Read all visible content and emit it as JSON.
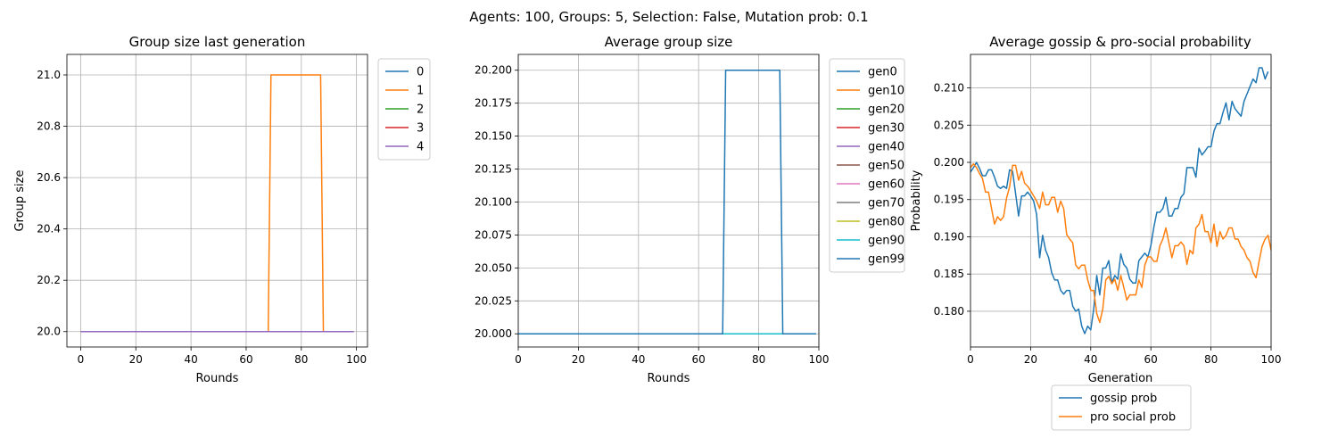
{
  "suptitle": "Agents: 100, Groups: 5, Selection: False, Mutation prob: 0.1",
  "chart_data": [
    {
      "type": "line",
      "title": "Group size last generation",
      "xlabel": "Rounds",
      "ylabel": "Group size",
      "xlim": [
        -5,
        104
      ],
      "ylim": [
        19.94,
        21.08
      ],
      "xticks": [
        0,
        20,
        40,
        60,
        80,
        100
      ],
      "xtick_labels": [
        "0",
        "20",
        "40",
        "60",
        "80",
        "100"
      ],
      "yticks": [
        20.0,
        20.2,
        20.4,
        20.6,
        20.8,
        21.0
      ],
      "ytick_labels": [
        "20.0",
        "20.2",
        "20.4",
        "20.6",
        "20.8",
        "21.0"
      ],
      "grid": true,
      "legend_position": "outside-top-right",
      "series": [
        {
          "name": "0",
          "color": "#1f77b4",
          "points": [
            [
              0,
              20.0
            ],
            [
              99,
              20.0
            ]
          ]
        },
        {
          "name": "1",
          "color": "#ff7f0e",
          "points": [
            [
              0,
              20.0
            ],
            [
              68,
              20.0
            ],
            [
              69,
              21.0
            ],
            [
              87,
              21.0
            ],
            [
              88,
              20.0
            ],
            [
              99,
              20.0
            ]
          ]
        },
        {
          "name": "2",
          "color": "#2ca02c",
          "points": [
            [
              0,
              20.0
            ],
            [
              99,
              20.0
            ]
          ]
        },
        {
          "name": "3",
          "color": "#d62728",
          "points": [
            [
              0,
              20.0
            ],
            [
              99,
              20.0
            ]
          ]
        },
        {
          "name": "4",
          "color": "#9467bd",
          "points": [
            [
              0,
              20.0
            ],
            [
              99,
              20.0
            ]
          ]
        }
      ]
    },
    {
      "type": "line",
      "title": "Average group size",
      "xlabel": "Rounds",
      "ylabel": "",
      "xlim": [
        0,
        100
      ],
      "ylim": [
        19.99,
        20.212
      ],
      "xticks": [
        0,
        20,
        40,
        60,
        80,
        100
      ],
      "xtick_labels": [
        "0",
        "20",
        "40",
        "60",
        "80",
        "100"
      ],
      "yticks": [
        20.0,
        20.025,
        20.05,
        20.075,
        20.1,
        20.125,
        20.15,
        20.175,
        20.2
      ],
      "ytick_labels": [
        "20.000",
        "20.025",
        "20.050",
        "20.075",
        "20.100",
        "20.125",
        "20.150",
        "20.175",
        "20.200"
      ],
      "grid": true,
      "legend_position": "outside-top-right",
      "series": [
        {
          "name": "gen0",
          "color": "#1f77b4",
          "points": [
            [
              0,
              20.0
            ],
            [
              99,
              20.0
            ]
          ]
        },
        {
          "name": "gen10",
          "color": "#ff7f0e",
          "points": [
            [
              0,
              20.0
            ],
            [
              99,
              20.0
            ]
          ]
        },
        {
          "name": "gen20",
          "color": "#2ca02c",
          "points": [
            [
              0,
              20.0
            ],
            [
              99,
              20.0
            ]
          ]
        },
        {
          "name": "gen30",
          "color": "#d62728",
          "points": [
            [
              0,
              20.0
            ],
            [
              99,
              20.0
            ]
          ]
        },
        {
          "name": "gen40",
          "color": "#9467bd",
          "points": [
            [
              0,
              20.0
            ],
            [
              99,
              20.0
            ]
          ]
        },
        {
          "name": "gen50",
          "color": "#8c564b",
          "points": [
            [
              0,
              20.0
            ],
            [
              99,
              20.0
            ]
          ]
        },
        {
          "name": "gen60",
          "color": "#e377c2",
          "points": [
            [
              0,
              20.0
            ],
            [
              99,
              20.0
            ]
          ]
        },
        {
          "name": "gen70",
          "color": "#7f7f7f",
          "points": [
            [
              0,
              20.0
            ],
            [
              99,
              20.0
            ]
          ]
        },
        {
          "name": "gen80",
          "color": "#bcbd22",
          "points": [
            [
              0,
              20.0
            ],
            [
              99,
              20.0
            ]
          ]
        },
        {
          "name": "gen90",
          "color": "#17becf",
          "points": [
            [
              0,
              20.0
            ],
            [
              99,
              20.0
            ]
          ]
        },
        {
          "name": "gen99",
          "color": "#1f77b4",
          "points": [
            [
              0,
              20.0
            ],
            [
              68,
              20.0
            ],
            [
              69,
              20.2
            ],
            [
              87,
              20.2
            ],
            [
              88,
              20.0
            ],
            [
              99,
              20.0
            ]
          ]
        }
      ]
    },
    {
      "type": "line",
      "title": "Average gossip & pro-social probability",
      "xlabel": "Generation",
      "ylabel": "Probability",
      "xlim": [
        0,
        100
      ],
      "ylim": [
        0.1752,
        0.2145
      ],
      "xticks": [
        0,
        20,
        40,
        60,
        80,
        100
      ],
      "xtick_labels": [
        "0",
        "20",
        "40",
        "60",
        "80",
        "100"
      ],
      "yticks": [
        0.18,
        0.185,
        0.19,
        0.195,
        0.2,
        0.205,
        0.21
      ],
      "ytick_labels": [
        "0.180",
        "0.185",
        "0.190",
        "0.195",
        "0.200",
        "0.205",
        "0.210"
      ],
      "grid": true,
      "legend_position": "below",
      "series": [
        {
          "name": "gossip prob",
          "color": "#1f77b4",
          "y": [
            0.1987,
            0.1993,
            0.2,
            0.1992,
            0.1982,
            0.1982,
            0.199,
            0.199,
            0.198,
            0.1968,
            0.1965,
            0.1968,
            0.1965,
            0.199,
            0.1988,
            0.1958,
            0.1928,
            0.1955,
            0.1955,
            0.196,
            0.1955,
            0.1948,
            0.193,
            0.1872,
            0.1902,
            0.1882,
            0.1872,
            0.1852,
            0.1842,
            0.1842,
            0.1828,
            0.1823,
            0.1828,
            0.1828,
            0.1807,
            0.18,
            0.1803,
            0.178,
            0.177,
            0.178,
            0.1775,
            0.1803,
            0.1848,
            0.1822,
            0.1858,
            0.1858,
            0.1868,
            0.1838,
            0.1848,
            0.1843,
            0.1877,
            0.1863,
            0.1858,
            0.1843,
            0.1838,
            0.1838,
            0.1868,
            0.1873,
            0.1878,
            0.1873,
            0.1888,
            0.1913,
            0.1933,
            0.1933,
            0.1938,
            0.1953,
            0.1928,
            0.1928,
            0.1938,
            0.1938,
            0.1953,
            0.1958,
            0.1993,
            0.1993,
            0.1993,
            0.198,
            0.2019,
            0.201,
            0.2015,
            0.2021,
            0.2021,
            0.2042,
            0.2052,
            0.2052,
            0.2067,
            0.208,
            0.2057,
            0.2082,
            0.2072,
            0.2067,
            0.2062,
            0.2082,
            0.2092,
            0.2102,
            0.2112,
            0.2107,
            0.2127,
            0.2127,
            0.2112,
            0.2122
          ]
        },
        {
          "name": "pro social prob",
          "color": "#ff7f0e",
          "y": [
            0.1993,
            0.1998,
            0.1993,
            0.1985,
            0.1978,
            0.196,
            0.196,
            0.1938,
            0.1917,
            0.1927,
            0.1922,
            0.1927,
            0.1952,
            0.1967,
            0.1996,
            0.1996,
            0.1976,
            0.1988,
            0.1972,
            0.1968,
            0.1962,
            0.1955,
            0.1948,
            0.1938,
            0.196,
            0.1943,
            0.1943,
            0.1953,
            0.1953,
            0.1933,
            0.1948,
            0.1938,
            0.1903,
            0.1897,
            0.1892,
            0.1862,
            0.1857,
            0.1862,
            0.1862,
            0.1842,
            0.1828,
            0.1828,
            0.1797,
            0.1785,
            0.1803,
            0.1842,
            0.1847,
            0.1837,
            0.1843,
            0.1828,
            0.1848,
            0.1832,
            0.1815,
            0.1822,
            0.1822,
            0.1822,
            0.1842,
            0.1832,
            0.1862,
            0.1873,
            0.1873,
            0.1867,
            0.1867,
            0.1888,
            0.1897,
            0.1912,
            0.1892,
            0.1872,
            0.1888,
            0.1888,
            0.1893,
            0.1888,
            0.1863,
            0.1882,
            0.1877,
            0.1912,
            0.1917,
            0.193,
            0.1907,
            0.1907,
            0.1892,
            0.1917,
            0.1887,
            0.1907,
            0.1897,
            0.1902,
            0.1912,
            0.1912,
            0.1897,
            0.1897,
            0.1887,
            0.1882,
            0.1872,
            0.1867,
            0.1852,
            0.1845,
            0.1867,
            0.1887,
            0.1897,
            0.1902,
            0.1882
          ]
        }
      ]
    }
  ]
}
